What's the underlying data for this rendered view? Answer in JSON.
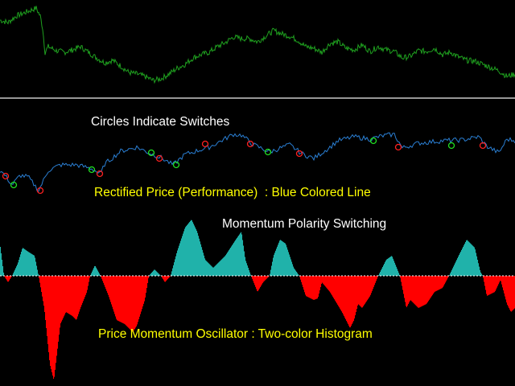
{
  "chart_data": [
    {
      "type": "line",
      "name": "price",
      "color": "#1fa01f",
      "xlim": [
        0,
        640
      ],
      "x": [
        0,
        10,
        20,
        30,
        40,
        45,
        50,
        53,
        56,
        60,
        70,
        80,
        90,
        100,
        110,
        120,
        130,
        140,
        150,
        160,
        170,
        180,
        190,
        200,
        210,
        220,
        230,
        240,
        250,
        260,
        270,
        280,
        290,
        300,
        310,
        320,
        330,
        340,
        350,
        360,
        370,
        380,
        390,
        400,
        410,
        420,
        430,
        440,
        450,
        460,
        470,
        480,
        490,
        500,
        510,
        520,
        530,
        540,
        550,
        560,
        570,
        580,
        590,
        600,
        610,
        620,
        630,
        640
      ],
      "values": [
        95,
        92,
        100,
        104,
        108,
        110,
        100,
        85,
        55,
        62,
        57,
        55,
        58,
        62,
        55,
        48,
        42,
        45,
        38,
        30,
        28,
        25,
        20,
        22,
        28,
        35,
        40,
        48,
        52,
        55,
        62,
        67,
        74,
        72,
        72,
        68,
        75,
        82,
        78,
        75,
        70,
        62,
        60,
        55,
        66,
        68,
        60,
        58,
        64,
        56,
        62,
        58,
        56,
        48,
        50,
        57,
        56,
        60,
        52,
        55,
        49,
        45,
        44,
        40,
        36,
        32,
        25,
        28
      ]
    },
    {
      "type": "line",
      "name": "rectified_price",
      "label": "Rectified Price (Performance)  : Blue Colored Line",
      "color": "#2a7fd4",
      "x": [
        0,
        7,
        15,
        25,
        35,
        48,
        60,
        75,
        95,
        115,
        125,
        130,
        150,
        170,
        185,
        200,
        215,
        230,
        260,
        290,
        300,
        315,
        335,
        360,
        375,
        390,
        410,
        420,
        440,
        460,
        475,
        490,
        500,
        520,
        550,
        575,
        595,
        605,
        620,
        630,
        640
      ],
      "values": [
        38,
        31,
        20,
        32,
        30,
        13,
        38,
        45,
        45,
        40,
        33,
        46,
        62,
        67,
        60,
        54,
        45,
        58,
        67,
        83,
        82,
        70,
        61,
        70,
        59,
        53,
        67,
        75,
        80,
        77,
        81,
        83,
        66,
        72,
        75,
        76,
        80,
        68,
        60,
        77,
        75
      ],
      "switch_circles": [
        {
          "x": 7,
          "value": 31,
          "polarity": "down",
          "color": "#ff2020"
        },
        {
          "x": 17,
          "value": 20,
          "polarity": "up",
          "color": "#20e020"
        },
        {
          "x": 50,
          "value": 13,
          "polarity": "down",
          "color": "#ff2020"
        },
        {
          "x": 114,
          "value": 39,
          "polarity": "up",
          "color": "#20e020"
        },
        {
          "x": 124,
          "value": 34,
          "polarity": "down",
          "color": "#ff2020"
        },
        {
          "x": 188,
          "value": 60,
          "polarity": "up",
          "color": "#20e020"
        },
        {
          "x": 198,
          "value": 53,
          "polarity": "down",
          "color": "#ff2020"
        },
        {
          "x": 219,
          "value": 45,
          "polarity": "up",
          "color": "#20e020"
        },
        {
          "x": 255,
          "value": 71,
          "polarity": "down",
          "color": "#ff2020"
        },
        {
          "x": 311,
          "value": 71,
          "polarity": "down",
          "color": "#ff2020"
        },
        {
          "x": 333,
          "value": 61,
          "polarity": "up",
          "color": "#20e020"
        },
        {
          "x": 372,
          "value": 59,
          "polarity": "down",
          "color": "#ff2020"
        },
        {
          "x": 464,
          "value": 75,
          "polarity": "up",
          "color": "#20e020"
        },
        {
          "x": 495,
          "value": 67,
          "polarity": "down",
          "color": "#ff2020"
        },
        {
          "x": 561,
          "value": 69,
          "polarity": "up",
          "color": "#20e020"
        },
        {
          "x": 600,
          "value": 69,
          "polarity": "down",
          "color": "#ff2020"
        }
      ]
    },
    {
      "type": "bar",
      "name": "momentum",
      "label": "Price Momentum Oscillator : Two-color Histogram",
      "positive_color": "#20b2aa",
      "negative_color": "#ff0000",
      "zero_line_color": "#ffffff",
      "x": [
        0,
        5,
        10,
        15,
        22,
        28,
        35,
        43,
        48,
        55,
        62,
        67,
        75,
        82,
        90,
        95,
        100,
        108,
        112,
        118,
        125,
        135,
        145,
        155,
        165,
        170,
        180,
        185,
        192,
        200,
        205,
        212,
        220,
        230,
        238,
        245,
        255,
        265,
        280,
        293,
        300,
        305,
        312,
        320,
        327,
        335,
        340,
        348,
        355,
        365,
        372,
        380,
        390,
        395,
        400,
        410,
        425,
        435,
        440,
        445,
        450,
        460,
        470,
        480,
        487,
        493,
        497,
        505,
        510,
        520,
        530,
        540,
        550,
        558,
        570,
        580,
        590,
        597,
        600,
        605,
        615,
        622,
        630,
        635,
        640
      ],
      "values": [
        40,
        0,
        -8,
        0,
        15,
        35,
        30,
        25,
        0,
        -40,
        -110,
        -130,
        -60,
        -45,
        -50,
        -55,
        -40,
        -20,
        0,
        13,
        0,
        -25,
        -55,
        -60,
        -70,
        -62,
        -30,
        0,
        8,
        0,
        -8,
        0,
        30,
        60,
        70,
        55,
        20,
        10,
        25,
        45,
        55,
        20,
        0,
        -20,
        -8,
        0,
        25,
        45,
        40,
        10,
        0,
        -25,
        -30,
        -28,
        -8,
        -20,
        -45,
        -65,
        -55,
        -35,
        -40,
        -25,
        0,
        20,
        25,
        10,
        0,
        -40,
        -30,
        -40,
        -35,
        -20,
        -15,
        0,
        25,
        45,
        35,
        5,
        0,
        -25,
        -20,
        -5,
        -35,
        -45,
        -40
      ]
    }
  ],
  "annotations": {
    "circles_label": "Circles Indicate Switches",
    "rectified_label": "Rectified Price (Performance)  : Blue Colored Line",
    "polarity_label": "Momentum Polarity Switching",
    "oscillator_label": "Price Momentum Oscillator : Two-color Histogram"
  }
}
